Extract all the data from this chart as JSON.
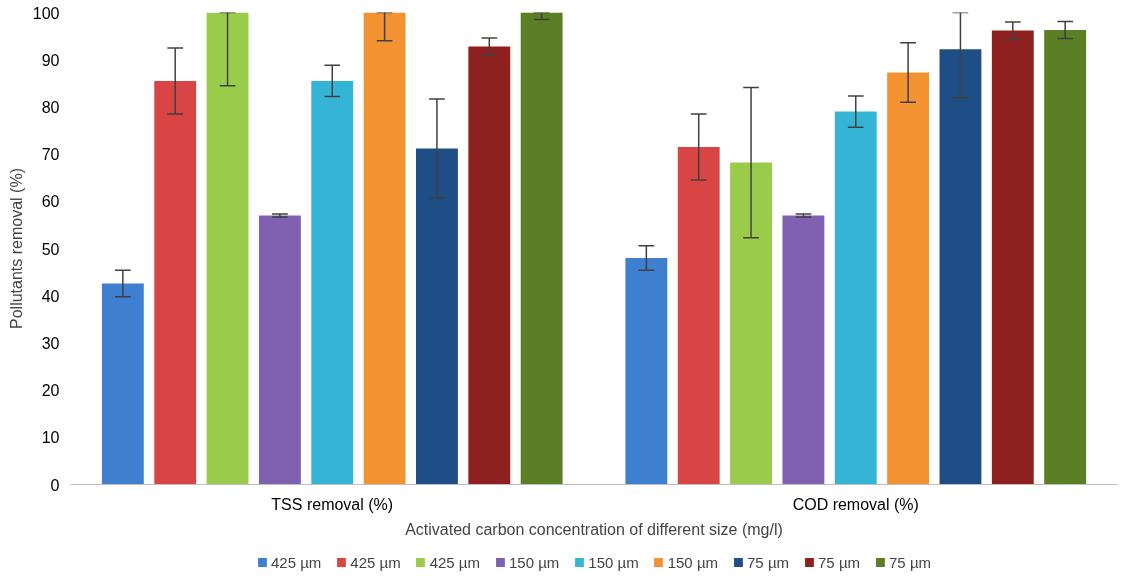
{
  "chart_data": {
    "type": "bar",
    "xlabel": "Activated carbon concentration of different size (mg/l)",
    "ylabel": "Pollutants removal (%)",
    "categories": [
      "TSS removal (%)",
      "COD removal (%)"
    ],
    "ylim": [
      0,
      100
    ],
    "yticks": [
      0,
      10,
      20,
      30,
      40,
      50,
      60,
      70,
      80,
      90,
      100
    ],
    "grid": false,
    "legend": "bottom",
    "series": [
      {
        "name": "425 µm",
        "color": "#3f7fd0",
        "values": [
          42.6,
          48
        ],
        "errors": [
          2.8,
          2.6
        ]
      },
      {
        "name": "425 µm",
        "color": "#d94545",
        "values": [
          85.5,
          71.5
        ],
        "errors": [
          7,
          7
        ]
      },
      {
        "name": "425 µm",
        "color": "#9acb4a",
        "values": [
          100,
          68.2
        ],
        "errors": [
          [
            84.5,
            100
          ],
          15.9
        ]
      },
      {
        "name": "150 µm",
        "color": "#8060b0",
        "values": [
          57,
          57
        ],
        "errors": [
          0.3,
          0.3
        ]
      },
      {
        "name": "150 µm",
        "color": "#35b5d5",
        "values": [
          85.5,
          79
        ],
        "errors": [
          3.3,
          3.3
        ]
      },
      {
        "name": "150 µm",
        "color": "#f39230",
        "values": [
          100,
          87.3
        ],
        "errors": [
          [
            94,
            100
          ],
          6.3
        ]
      },
      {
        "name": "75 µm",
        "color": "#1f4e86",
        "values": [
          71.2,
          92.2
        ],
        "errors": [
          10.5,
          [
            82,
            100
          ]
        ]
      },
      {
        "name": "75 µm",
        "color": "#8f2020",
        "values": [
          92.8,
          96.2
        ],
        "errors": [
          1.8,
          1.8
        ]
      },
      {
        "name": "75 µm",
        "color": "#5a7f24",
        "values": [
          100,
          96.3
        ],
        "errors": [
          [
            98.5,
            100
          ],
          1.8
        ]
      }
    ]
  }
}
